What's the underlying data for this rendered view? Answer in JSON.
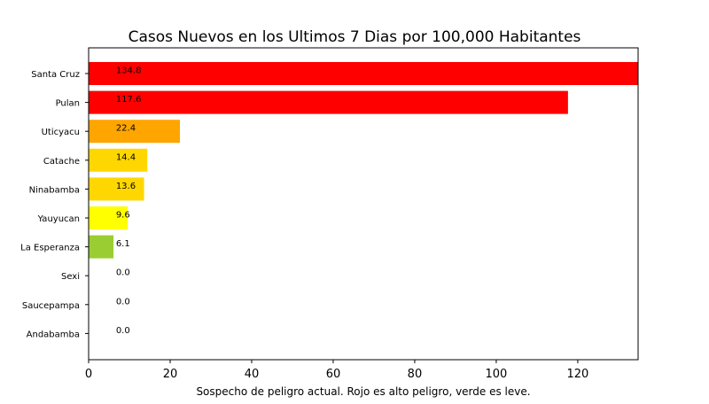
{
  "chart_data": {
    "type": "bar",
    "orientation": "horizontal",
    "title": "Casos Nuevos en los Ultimos 7 Dias por 100,000 Habitantes",
    "xlabel": "Sospecho de peligro actual. Rojo es alto peligro, verde es leve.",
    "ylabel": "",
    "xlim": [
      0,
      134.8
    ],
    "xticks": [
      0,
      20,
      40,
      60,
      80,
      100,
      120
    ],
    "categories": [
      "Santa Cruz",
      "Pulan",
      "Uticyacu",
      "Catache",
      "Ninabamba",
      "Yauyucan",
      "La Esperanza",
      "Sexi",
      "Saucepampa",
      "Andabamba"
    ],
    "values": [
      134.8,
      117.6,
      22.4,
      14.4,
      13.6,
      9.6,
      6.1,
      0.0,
      0.0,
      0.0
    ],
    "value_labels": [
      "134.8",
      "117.6",
      "22.4",
      "14.4",
      "13.6",
      "9.6",
      "6.1",
      "0.0",
      "0.0",
      "0.0"
    ],
    "colors": [
      "#ff0000",
      "#ff0000",
      "#ffa500",
      "#ffd700",
      "#ffd700",
      "#ffff00",
      "#9acd32",
      "#9acd32",
      "#9acd32",
      "#9acd32"
    ],
    "grid": false,
    "legend": "none"
  }
}
